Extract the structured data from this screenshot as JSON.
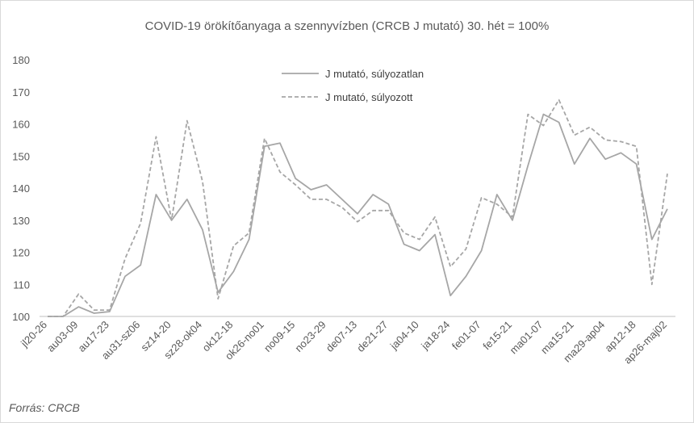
{
  "chart_data": {
    "type": "line",
    "title": "COVID-19 örökítőanyaga a szennyvízben (CRCB J mutató) 30. hét = 100%",
    "xlabel": "",
    "ylabel": "",
    "ylim": [
      100,
      180
    ],
    "yticks": [
      100,
      110,
      120,
      130,
      140,
      150,
      160,
      170,
      180
    ],
    "grid": false,
    "legend_position": "top-center",
    "x_tick_labels": [
      "jl20-26",
      "au03-09",
      "au17-23",
      "au31-sz06",
      "sz14-20",
      "sz28-ok04",
      "ok12-18",
      "ok26-no01",
      "no09-15",
      "no23-29",
      "de07-13",
      "de21-27",
      "ja04-10",
      "ja18-24",
      "fe01-07",
      "fe15-21",
      "ma01-07",
      "ma15-21",
      "ma29-ap04",
      "ap12-18",
      "ap26-maj02"
    ],
    "series": [
      {
        "name": "J mutató, súlyozatlan",
        "color": "#a6a6a6",
        "dash": "solid",
        "values": [
          100,
          100,
          103,
          101,
          101.5,
          112.5,
          116,
          138,
          130,
          136.5,
          127,
          107.5,
          114,
          124,
          153,
          154,
          143,
          139.5,
          141,
          136.5,
          132,
          138,
          135,
          122.5,
          120.5,
          125.5,
          106.5,
          112.5,
          120.5,
          138,
          130,
          147,
          163,
          160.5,
          147.5,
          155.5,
          149,
          151,
          147.5,
          124,
          133.5
        ]
      },
      {
        "name": "J mutató, súlyozott",
        "color": "#a6a6a6",
        "dash": "dashed",
        "values": [
          100,
          100,
          107,
          102,
          102,
          118,
          129,
          156,
          130,
          161,
          142,
          105.5,
          122,
          126,
          155.5,
          145,
          141,
          136.5,
          136.5,
          134,
          129.5,
          133,
          133,
          126,
          124,
          131,
          115.5,
          121,
          137,
          135,
          131,
          163,
          159.5,
          167.5,
          156.5,
          159,
          155,
          154.5,
          153,
          110,
          144.5
        ]
      }
    ]
  },
  "source_note": "Forrás: CRCB"
}
